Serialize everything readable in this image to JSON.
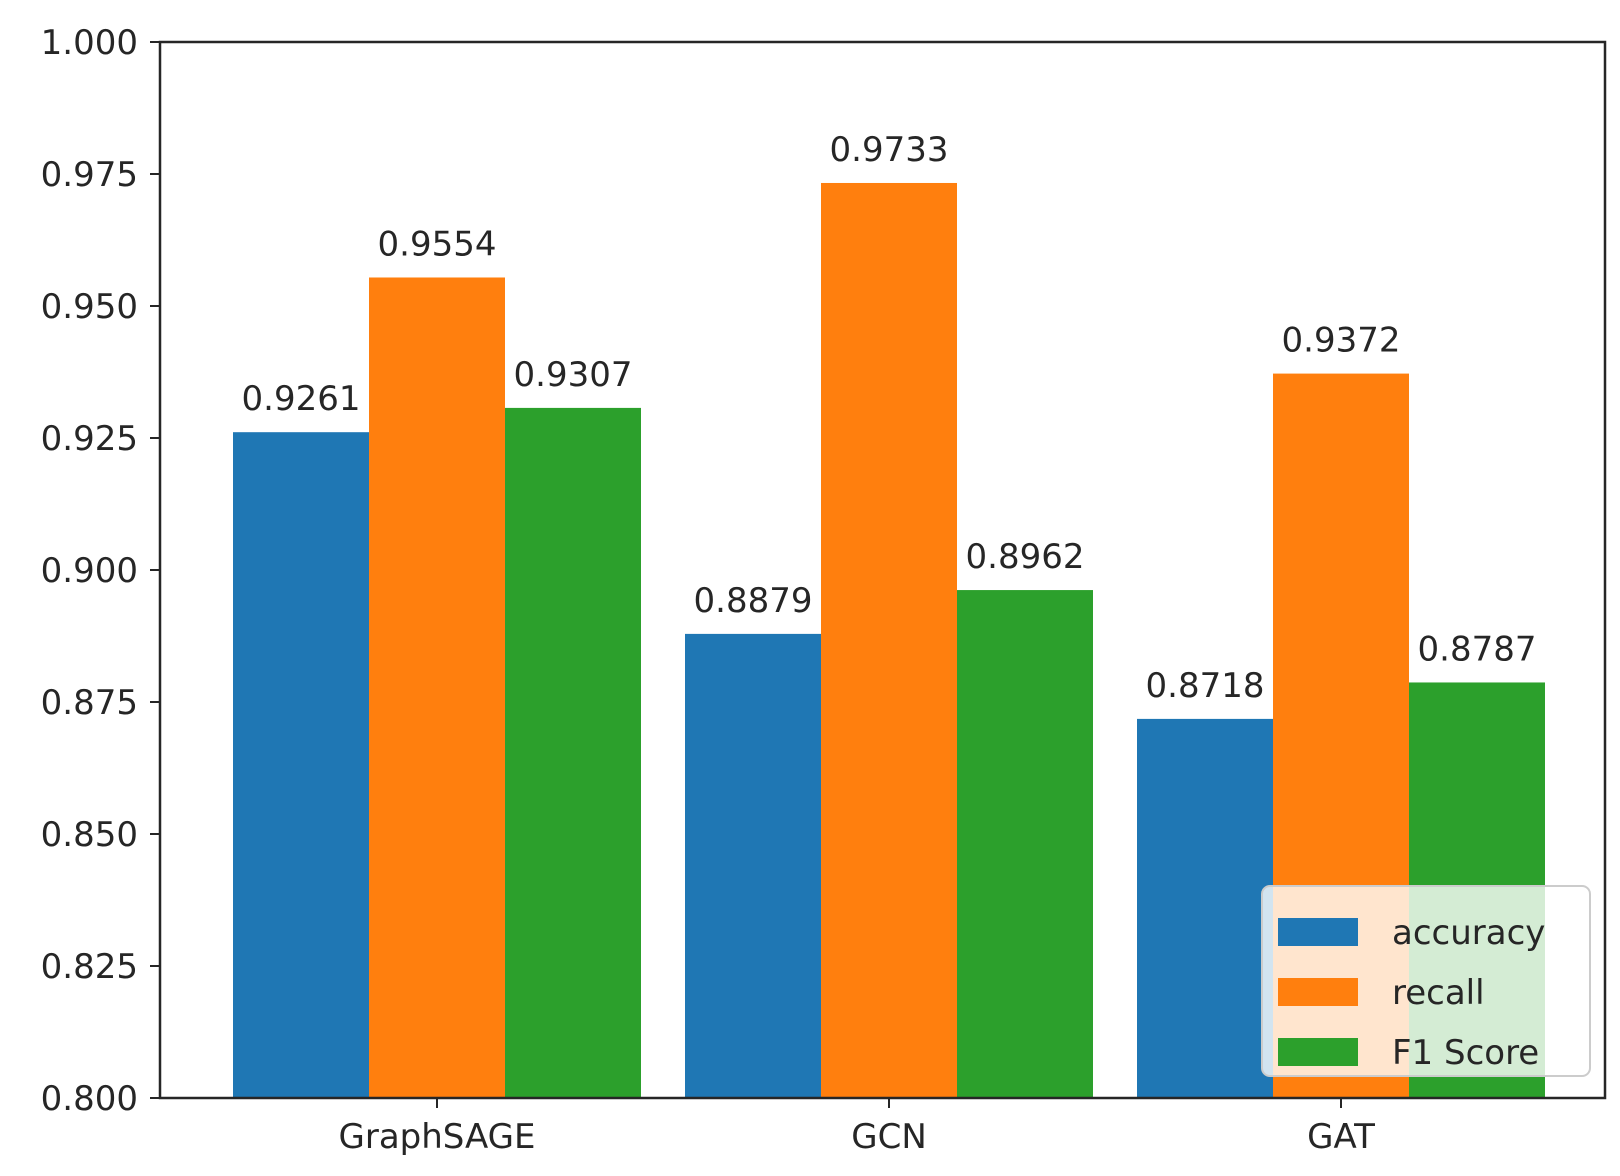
{
  "chart_data": {
    "type": "bar",
    "title": "",
    "xlabel": "",
    "ylabel": "",
    "categories": [
      "GraphSAGE",
      "GCN",
      "GAT"
    ],
    "series": [
      {
        "name": "accuracy",
        "color": "#1f77b4",
        "values": [
          0.9261,
          0.8879,
          0.8718
        ],
        "labels": [
          "0.9261",
          "0.8879",
          "0.8718"
        ]
      },
      {
        "name": "recall",
        "color": "#ff7f0e",
        "values": [
          0.9554,
          0.9733,
          0.9372
        ],
        "labels": [
          "0.9554",
          "0.9733",
          "0.9372"
        ]
      },
      {
        "name": "F1 Score",
        "color": "#2ca02c",
        "values": [
          0.9307,
          0.8962,
          0.8787
        ],
        "labels": [
          "0.9307",
          "0.8962",
          "0.8787"
        ]
      }
    ],
    "ylim": [
      0.8,
      1.0
    ],
    "yticks": [
      "0.800",
      "0.825",
      "0.850",
      "0.875",
      "0.900",
      "0.925",
      "0.950",
      "0.975",
      "1.000"
    ],
    "grid": false,
    "legend": {
      "placement": "lower-right",
      "entries": [
        "accuracy",
        "recall",
        "F1 Score"
      ]
    }
  }
}
